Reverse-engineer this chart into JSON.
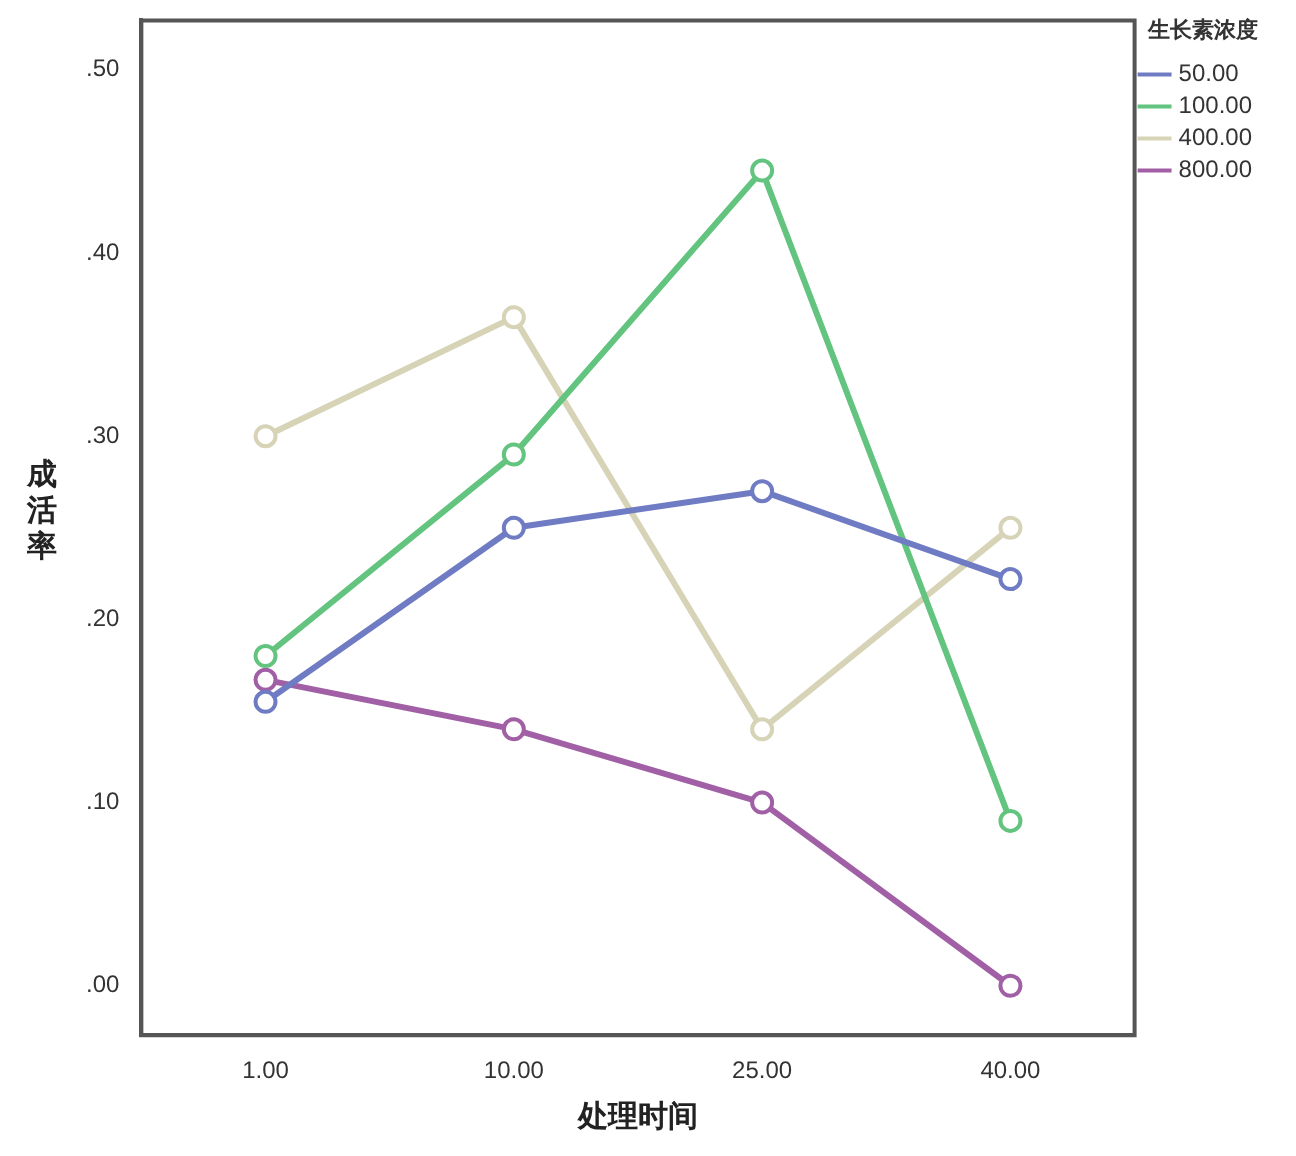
{
  "chart_data": {
    "type": "line",
    "xlabel": "处理时间",
    "ylabel": "成活率",
    "legend_title": "生长素浓度",
    "categories": [
      "1.00",
      "10.00",
      "25.00",
      "40.00"
    ],
    "series": [
      {
        "name": "50.00",
        "color": "#6f7cc4",
        "values": [
          0.155,
          0.25,
          0.27,
          0.222
        ]
      },
      {
        "name": "100.00",
        "color": "#62c47e",
        "values": [
          0.18,
          0.29,
          0.445,
          0.09
        ]
      },
      {
        "name": "400.00",
        "color": "#d6d3b6",
        "values": [
          0.3,
          0.365,
          0.14,
          0.25
        ]
      },
      {
        "name": "800.00",
        "color": "#a160a6",
        "values": [
          0.167,
          0.14,
          0.1,
          0.0
        ]
      }
    ],
    "ylim": [
      -0.027,
      0.527
    ],
    "yticks": [
      {
        "value": 0,
        "label": ".00"
      },
      {
        "value": 0.1,
        "label": ".10"
      },
      {
        "value": 0.2,
        "label": ".20"
      },
      {
        "value": 0.3,
        "label": ".30"
      },
      {
        "value": 0.4,
        "label": ".40"
      },
      {
        "value": 0.5,
        "label": ".50"
      }
    ],
    "grid": false,
    "legend": "top right",
    "marker": "circle",
    "line_style": "solid"
  }
}
